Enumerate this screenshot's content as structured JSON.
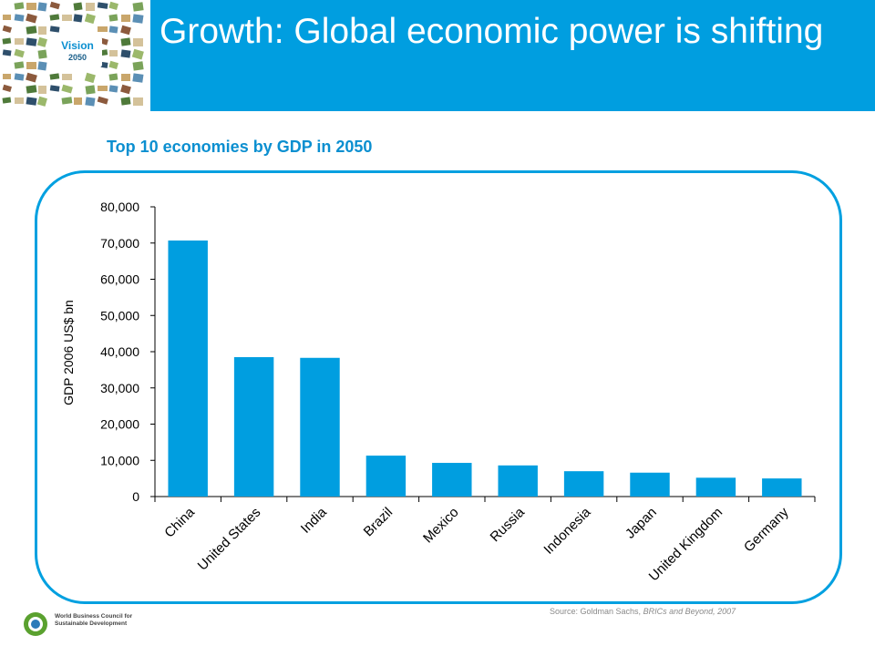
{
  "header": {
    "title": "Growth: Global economic power is shifting",
    "logo_word": "Vision",
    "logo_year": "2050",
    "accent_color": "#009ee0"
  },
  "footer": {
    "source_prefix": "Source: Goldman Sachs, ",
    "source_italic": "BRICs and Beyond, 2007",
    "org_line1": "World Business Council for",
    "org_line2": "Sustainable Development"
  },
  "chart_data": {
    "type": "bar",
    "title": "Top 10 economies by GDP in 2050",
    "xlabel": "",
    "ylabel": "GDP 2006 US$ bn",
    "categories": [
      "China",
      "United States",
      "India",
      "Brazil",
      "Mexico",
      "Russia",
      "Indonesia",
      "Japan",
      "United Kingdom",
      "Germany"
    ],
    "values": [
      70700,
      38500,
      38300,
      11300,
      9300,
      8600,
      7000,
      6600,
      5200,
      5000
    ],
    "ylim": [
      0,
      80000
    ],
    "yticks": [
      "0",
      "10,000",
      "20,000",
      "30,000",
      "40,000",
      "50,000",
      "60,000",
      "70,000",
      "80,000"
    ],
    "bar_color": "#009ee0",
    "grid": false,
    "legend": "none"
  }
}
